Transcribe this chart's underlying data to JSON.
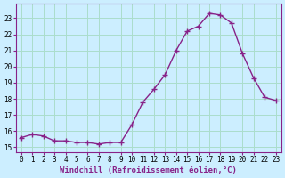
{
  "hours": [
    0,
    1,
    2,
    3,
    4,
    5,
    6,
    7,
    8,
    9,
    10,
    11,
    12,
    13,
    14,
    15,
    16,
    17,
    18,
    19,
    20,
    21,
    22,
    23
  ],
  "values": [
    15.6,
    15.8,
    15.7,
    15.4,
    15.4,
    15.3,
    15.3,
    15.2,
    15.3,
    15.3,
    16.4,
    17.8,
    18.6,
    19.5,
    21.0,
    22.2,
    22.5,
    23.3,
    23.2,
    22.7,
    20.8,
    19.3,
    18.1,
    17.9
  ],
  "line_color": "#882288",
  "marker_color": "#882288",
  "bg_color": "#cceeff",
  "grid_color": "#aaddcc",
  "xlabel": "Windchill (Refroidissement éolien,°C)",
  "ylim": [
    14.7,
    23.9
  ],
  "xlim": [
    -0.5,
    23.5
  ],
  "yticks": [
    15,
    16,
    17,
    18,
    19,
    20,
    21,
    22,
    23
  ],
  "xticks": [
    0,
    1,
    2,
    3,
    4,
    5,
    6,
    7,
    8,
    9,
    10,
    11,
    12,
    13,
    14,
    15,
    16,
    17,
    18,
    19,
    20,
    21,
    22,
    23
  ],
  "tick_fontsize": 5.5,
  "xlabel_fontsize": 6.5,
  "line_width": 1.0,
  "marker_size": 4
}
